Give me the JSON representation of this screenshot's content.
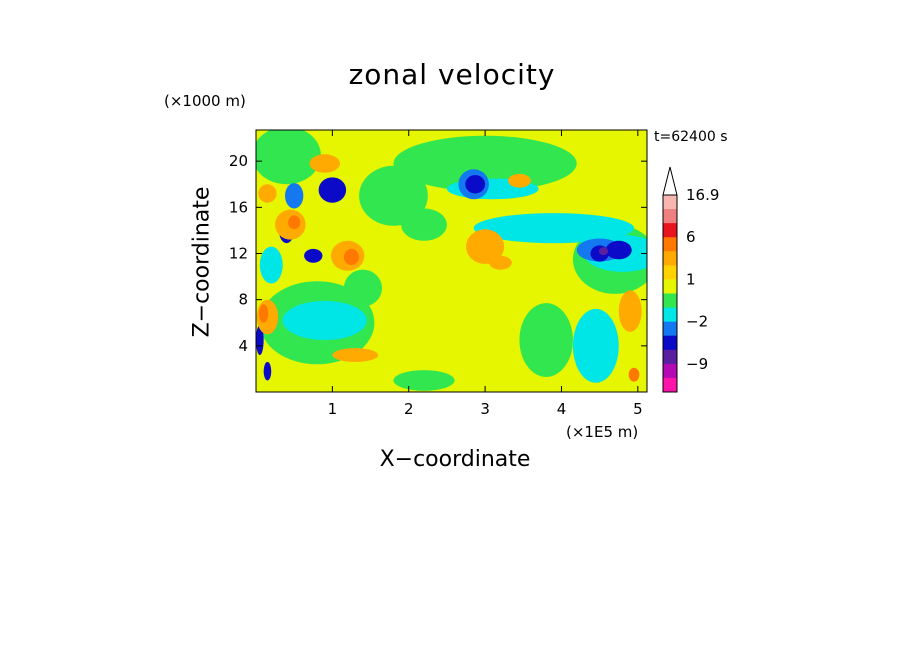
{
  "title": "zonal velocity",
  "timestamp": "t=62400 s",
  "chart_data": {
    "type": "heatmap",
    "title": "zonal velocity",
    "xlabel": "X−coordinate",
    "ylabel": "Z−coordinate",
    "x_unit": "(×1E5 m)",
    "z_unit": "(×1000 m)",
    "xlim": [
      0,
      5.12
    ],
    "ylim": [
      0,
      22.7
    ],
    "x_ticks": [
      1,
      2,
      3,
      4,
      5
    ],
    "y_ticks": [
      4,
      8,
      12,
      16,
      20
    ],
    "colorbar": {
      "tick_labels": [
        "16.9",
        "6",
        "1",
        "−2",
        "−9"
      ],
      "tick_values": [
        16.9,
        6,
        1,
        -2,
        -9
      ],
      "levels": [
        {
          "upper": 16.9,
          "color": "#f7b7b0"
        },
        {
          "upper": 13,
          "color": "#f08080"
        },
        {
          "upper": 9,
          "color": "#e8141e"
        },
        {
          "upper": 6,
          "color": "#ff7800"
        },
        {
          "upper": 4,
          "color": "#ffaa00"
        },
        {
          "upper": 2,
          "color": "#ffd200"
        },
        {
          "upper": 1,
          "color": "#e6f500"
        },
        {
          "upper": 0,
          "color": "#32e650"
        },
        {
          "upper": -1,
          "color": "#00e6e6"
        },
        {
          "upper": -2,
          "color": "#1478f0"
        },
        {
          "upper": -4,
          "color": "#0a0ac8"
        },
        {
          "upper": -6,
          "color": "#5a1ea0"
        },
        {
          "upper": -9,
          "color": "#b40ab4"
        },
        {
          "upper": -13,
          "color": "#ff14aa"
        }
      ],
      "top_triangle_color": "#ffffff"
    },
    "background_color": "#e6f500",
    "regions": [
      {
        "color": "#32e650",
        "x": 0.4,
        "z": 20.5,
        "rx": 0.45,
        "rz": 2.5
      },
      {
        "color": "#32e650",
        "x": 3.0,
        "z": 19.8,
        "rx": 1.2,
        "rz": 2.4
      },
      {
        "color": "#32e650",
        "x": 4.7,
        "z": 11.5,
        "rx": 0.55,
        "rz": 3.0
      },
      {
        "color": "#32e650",
        "x": 0.8,
        "z": 6.0,
        "rx": 0.75,
        "rz": 3.6
      },
      {
        "color": "#32e650",
        "x": 1.8,
        "z": 17.0,
        "rx": 0.45,
        "rz": 2.6
      },
      {
        "color": "#32e650",
        "x": 2.2,
        "z": 14.5,
        "rx": 0.3,
        "rz": 1.4
      },
      {
        "color": "#32e650",
        "x": 2.2,
        "z": 1.0,
        "rx": 0.4,
        "rz": 0.9
      },
      {
        "color": "#32e650",
        "x": 1.4,
        "z": 9.0,
        "rx": 0.25,
        "rz": 1.6
      },
      {
        "color": "#32e650",
        "x": 3.8,
        "z": 4.5,
        "rx": 0.35,
        "rz": 3.2
      },
      {
        "color": "#00e6e6",
        "x": 3.9,
        "z": 14.2,
        "rx": 1.05,
        "rz": 1.3
      },
      {
        "color": "#00e6e6",
        "x": 4.8,
        "z": 12.0,
        "rx": 0.5,
        "rz": 1.6
      },
      {
        "color": "#00e6e6",
        "x": 0.9,
        "z": 6.2,
        "rx": 0.55,
        "rz": 1.7
      },
      {
        "color": "#00e6e6",
        "x": 4.45,
        "z": 4.0,
        "rx": 0.3,
        "rz": 3.2
      },
      {
        "color": "#00e6e6",
        "x": 3.1,
        "z": 17.6,
        "rx": 0.6,
        "rz": 0.9
      },
      {
        "color": "#00e6e6",
        "x": 0.2,
        "z": 11.0,
        "rx": 0.15,
        "rz": 1.6
      },
      {
        "color": "#1478f0",
        "x": 2.85,
        "z": 18.0,
        "rx": 0.2,
        "rz": 1.3
      },
      {
        "color": "#1478f0",
        "x": 4.5,
        "z": 12.3,
        "rx": 0.3,
        "rz": 1.0
      },
      {
        "color": "#1478f0",
        "x": 0.5,
        "z": 17.0,
        "rx": 0.12,
        "rz": 1.1
      },
      {
        "color": "#0a0ac8",
        "x": 2.87,
        "z": 18.0,
        "rx": 0.13,
        "rz": 0.8
      },
      {
        "color": "#0a0ac8",
        "x": 4.75,
        "z": 12.3,
        "rx": 0.17,
        "rz": 0.8
      },
      {
        "color": "#0a0ac8",
        "x": 4.5,
        "z": 12.0,
        "rx": 0.12,
        "rz": 0.7
      },
      {
        "color": "#0a0ac8",
        "x": 1.0,
        "z": 17.5,
        "rx": 0.18,
        "rz": 1.1
      },
      {
        "color": "#0a0ac8",
        "x": 0.4,
        "z": 14.0,
        "rx": 0.1,
        "rz": 1.1
      },
      {
        "color": "#0a0ac8",
        "x": 0.75,
        "z": 11.8,
        "rx": 0.12,
        "rz": 0.6
      },
      {
        "color": "#0a0ac8",
        "x": 0.05,
        "z": 4.5,
        "rx": 0.05,
        "rz": 1.3
      },
      {
        "color": "#0a0ac8",
        "x": 0.15,
        "z": 1.8,
        "rx": 0.05,
        "rz": 0.8
      },
      {
        "color": "#5a1ea0",
        "x": 4.55,
        "z": 12.2,
        "rx": 0.06,
        "rz": 0.35
      },
      {
        "color": "#ffaa00",
        "x": 3.0,
        "z": 12.6,
        "rx": 0.25,
        "rz": 1.5
      },
      {
        "color": "#ffaa00",
        "x": 3.2,
        "z": 11.2,
        "rx": 0.15,
        "rz": 0.6
      },
      {
        "color": "#ffaa00",
        "x": 1.2,
        "z": 11.8,
        "rx": 0.22,
        "rz": 1.3
      },
      {
        "color": "#ffaa00",
        "x": 0.9,
        "z": 19.8,
        "rx": 0.2,
        "rz": 0.8
      },
      {
        "color": "#ffaa00",
        "x": 0.45,
        "z": 14.5,
        "rx": 0.2,
        "rz": 1.3
      },
      {
        "color": "#ffaa00",
        "x": 0.15,
        "z": 6.5,
        "rx": 0.14,
        "rz": 1.5
      },
      {
        "color": "#ffaa00",
        "x": 4.9,
        "z": 7.0,
        "rx": 0.15,
        "rz": 1.8
      },
      {
        "color": "#ffaa00",
        "x": 1.3,
        "z": 3.2,
        "rx": 0.3,
        "rz": 0.6
      },
      {
        "color": "#ffaa00",
        "x": 3.45,
        "z": 18.3,
        "rx": 0.15,
        "rz": 0.6
      },
      {
        "color": "#ffaa00",
        "x": 0.15,
        "z": 17.2,
        "rx": 0.12,
        "rz": 0.8
      },
      {
        "color": "#ff7800",
        "x": 1.25,
        "z": 11.7,
        "rx": 0.1,
        "rz": 0.7
      },
      {
        "color": "#ff7800",
        "x": 0.1,
        "z": 6.8,
        "rx": 0.06,
        "rz": 0.8
      },
      {
        "color": "#ff7800",
        "x": 4.95,
        "z": 1.5,
        "rx": 0.07,
        "rz": 0.6
      },
      {
        "color": "#ff7800",
        "x": 0.5,
        "z": 14.7,
        "rx": 0.08,
        "rz": 0.6
      }
    ]
  }
}
